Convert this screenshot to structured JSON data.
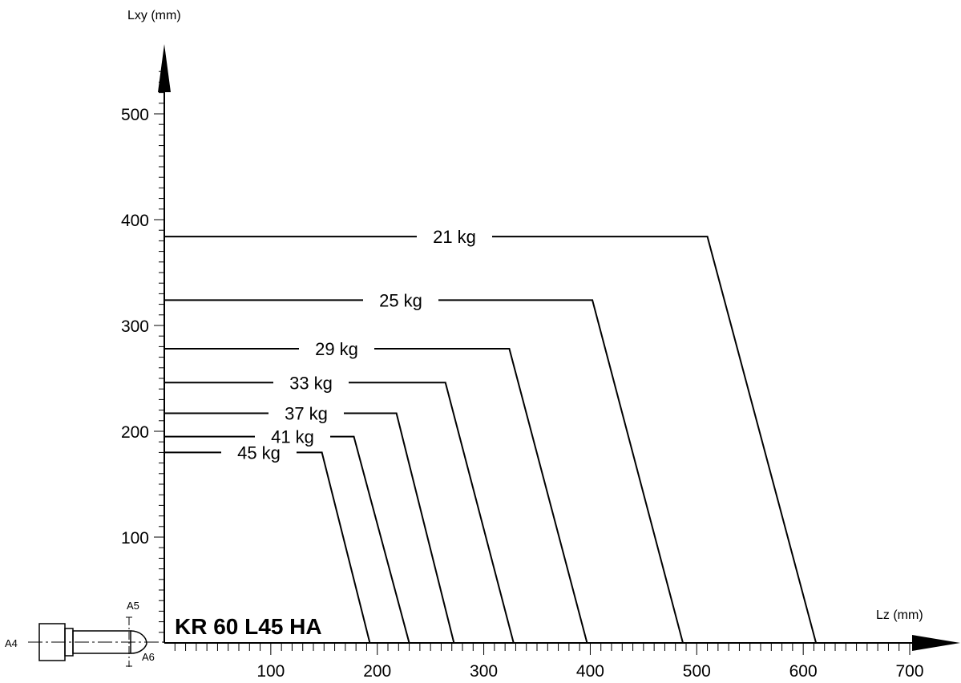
{
  "chart_data": {
    "type": "line",
    "title": "KR 60 L45 HA",
    "xlabel": "Lz (mm)",
    "ylabel": "Lxy (mm)",
    "xlim": [
      0,
      750
    ],
    "ylim": [
      0,
      560
    ],
    "x_ticks": [
      "100",
      "200",
      "300",
      "400",
      "500",
      "600",
      "700"
    ],
    "y_ticks": [
      "100",
      "200",
      "300",
      "400",
      "500"
    ],
    "grid": false,
    "series": [
      {
        "name": "21 kg",
        "points": [
          [
            0,
            384
          ],
          [
            510,
            384
          ],
          [
            612,
            0
          ]
        ]
      },
      {
        "name": "25 kg",
        "points": [
          [
            0,
            324
          ],
          [
            402,
            324
          ],
          [
            487,
            0
          ]
        ]
      },
      {
        "name": "29 kg",
        "points": [
          [
            0,
            278
          ],
          [
            324,
            278
          ],
          [
            397,
            0
          ]
        ]
      },
      {
        "name": "33 kg",
        "points": [
          [
            0,
            246
          ],
          [
            264,
            246
          ],
          [
            328,
            0
          ]
        ]
      },
      {
        "name": "37 kg",
        "points": [
          [
            0,
            217
          ],
          [
            218,
            217
          ],
          [
            272,
            0
          ]
        ]
      },
      {
        "name": "41 kg",
        "points": [
          [
            0,
            195
          ],
          [
            178,
            195
          ],
          [
            230,
            0
          ]
        ]
      },
      {
        "name": "45 kg",
        "points": [
          [
            0,
            180
          ],
          [
            148,
            180
          ],
          [
            193,
            0
          ]
        ]
      }
    ]
  },
  "wrist_labels": [
    "A4",
    "A5",
    "A6"
  ]
}
